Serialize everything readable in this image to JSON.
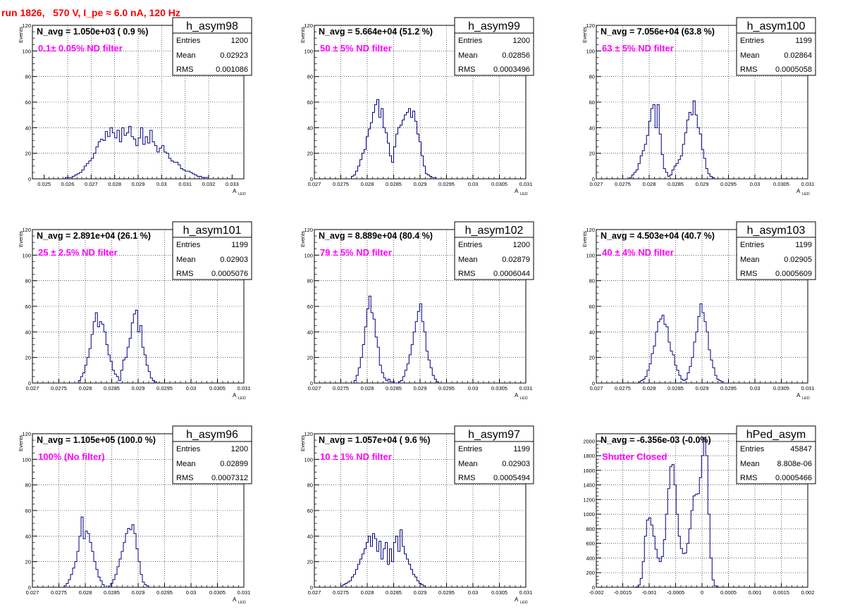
{
  "run_title": "run 1826,   570 V, I_pe ≈ 6.0 nA, 120 Hz",
  "colors": {
    "histogram_line": "#000080",
    "filter_label": "#ff00ff",
    "run_title": "#ff0000"
  },
  "chart_data": [
    {
      "type": "histogram",
      "name": "h_asym98",
      "title": "N_avg = 1.050e+03 ( 0.9 %)",
      "filter": "0.1± 0.05% ND filter",
      "stats": {
        "entries": "1200",
        "mean": "0.02923",
        "rms": "0.001086"
      },
      "stat_labels": {
        "entries": "Entries",
        "mean": "Mean",
        "rms": "RMS"
      },
      "ylabel": "Events",
      "xlabel": "A",
      "xlabel_sub": "LED",
      "xlim": [
        0.0245,
        0.0335
      ],
      "ylim": [
        0,
        120
      ],
      "xticks": [
        "0.025",
        "0.026",
        "0.027",
        "0.028",
        "0.029",
        "0.03",
        "0.031",
        "0.032",
        "0.033"
      ],
      "xtick_values": [
        0.025,
        0.026,
        0.027,
        0.028,
        0.029,
        0.03,
        0.031,
        0.032,
        0.033
      ],
      "yticks": [
        "0",
        "20",
        "40",
        "60",
        "80",
        "100",
        "120"
      ],
      "ytick_values": [
        0,
        20,
        40,
        60,
        80,
        100,
        120
      ],
      "bin_start": 0.0259,
      "bin_width": 0.0001,
      "counts": [
        1,
        1,
        1,
        2,
        3,
        4,
        5,
        7,
        10,
        12,
        14,
        16,
        20,
        25,
        29,
        31,
        30,
        37,
        33,
        40,
        36,
        32,
        38,
        29,
        40,
        34,
        36,
        41,
        33,
        31,
        26,
        32,
        40,
        27,
        33,
        28,
        38,
        29,
        26,
        21,
        24,
        26,
        21,
        20,
        16,
        14,
        13,
        13,
        11,
        8,
        7,
        6,
        6,
        5,
        4,
        3,
        2,
        2,
        1,
        1,
        1
      ]
    },
    {
      "type": "histogram",
      "name": "h_asym99",
      "title": "N_avg = 5.664e+04 (51.2 %)",
      "filter": "50 ± 5% ND filter",
      "stats": {
        "entries": "1200",
        "mean": "0.02856",
        "rms": "0.0003496"
      },
      "stat_labels": {
        "entries": "Entries",
        "mean": "Mean",
        "rms": "RMS"
      },
      "ylabel": "Events",
      "xlabel": "A",
      "xlabel_sub": "LED",
      "xlim": [
        0.027,
        0.031
      ],
      "ylim": [
        0,
        120
      ],
      "xticks": [
        "0.027",
        "0.0275",
        "0.028",
        "0.0285",
        "0.029",
        "0.0295",
        "0.03",
        "0.0305",
        "0.031"
      ],
      "xtick_values": [
        0.027,
        0.0275,
        0.028,
        0.0285,
        0.029,
        0.0295,
        0.03,
        0.0305,
        0.031
      ],
      "yticks": [
        "0",
        "20",
        "40",
        "60",
        "80",
        "100",
        "120"
      ],
      "ytick_values": [
        0,
        20,
        40,
        60,
        80,
        100,
        120
      ],
      "bin_start": 0.0277,
      "bin_width": 4e-05,
      "counts": [
        2,
        3,
        6,
        10,
        15,
        20,
        23,
        33,
        39,
        44,
        52,
        58,
        62,
        48,
        55,
        40,
        36,
        28,
        18,
        13,
        25,
        35,
        40,
        42,
        46,
        50,
        52,
        55,
        48,
        53,
        45,
        35,
        29,
        18,
        10,
        4,
        3,
        2,
        1,
        1
      ]
    },
    {
      "type": "histogram",
      "name": "h_asym100",
      "title": "N_avg = 7.056e+04 (63.8 %)",
      "filter": "63 ± 5% ND filter",
      "stats": {
        "entries": "1199",
        "mean": "0.02864",
        "rms": "0.0005058"
      },
      "stat_labels": {
        "entries": "Entries",
        "mean": "Mean",
        "rms": "RMS"
      },
      "ylabel": "Events",
      "xlabel": "A",
      "xlabel_sub": "LED",
      "xlim": [
        0.027,
        0.031
      ],
      "ylim": [
        0,
        120
      ],
      "xticks": [
        "0.027",
        "0.0275",
        "0.028",
        "0.0285",
        "0.029",
        "0.0295",
        "0.03",
        "0.0305",
        "0.031"
      ],
      "xtick_values": [
        0.027,
        0.0275,
        0.028,
        0.0285,
        0.029,
        0.0295,
        0.03,
        0.0305,
        0.031
      ],
      "yticks": [
        "0",
        "20",
        "40",
        "60",
        "80",
        "100",
        "120"
      ],
      "ytick_values": [
        0,
        20,
        40,
        60,
        80,
        100,
        120
      ],
      "bin_start": 0.02763,
      "bin_width": 4e-05,
      "counts": [
        1,
        3,
        5,
        7,
        12,
        18,
        22,
        27,
        34,
        45,
        55,
        58,
        40,
        58,
        35,
        19,
        8,
        5,
        2,
        3,
        7,
        10,
        12,
        15,
        18,
        27,
        36,
        46,
        52,
        50,
        61,
        50,
        40,
        35,
        23,
        16,
        8,
        4,
        2,
        1
      ]
    },
    {
      "type": "histogram",
      "name": "h_asym101",
      "title": "N_avg = 2.891e+04 (26.1 %)",
      "filter": "25 ± 2.5% ND filter",
      "stats": {
        "entries": "1199",
        "mean": "0.02903",
        "rms": "0.0005076"
      },
      "stat_labels": {
        "entries": "Entries",
        "mean": "Mean",
        "rms": "RMS"
      },
      "ylabel": "Events",
      "xlabel": "A",
      "xlabel_sub": "LED",
      "xlim": [
        0.027,
        0.031
      ],
      "ylim": [
        0,
        120
      ],
      "xticks": [
        "0.027",
        "0.0275",
        "0.028",
        "0.0285",
        "0.029",
        "0.0295",
        "0.03",
        "0.0305",
        "0.031"
      ],
      "xtick_values": [
        0.027,
        0.0275,
        0.028,
        0.0285,
        0.029,
        0.0295,
        0.03,
        0.0305,
        0.031
      ],
      "yticks": [
        "0",
        "20",
        "40",
        "60",
        "80",
        "100",
        "120"
      ],
      "ytick_values": [
        0,
        20,
        40,
        60,
        80,
        100,
        120
      ],
      "bin_start": 0.02787,
      "bin_width": 4e-05,
      "counts": [
        2,
        5,
        8,
        14,
        20,
        27,
        38,
        48,
        55,
        44,
        48,
        46,
        40,
        30,
        22,
        17,
        10,
        7,
        5,
        2,
        10,
        18,
        20,
        28,
        35,
        47,
        54,
        57,
        40,
        45,
        28,
        22,
        14,
        9,
        4,
        2,
        1
      ]
    },
    {
      "type": "histogram",
      "name": "h_asym102",
      "title": "N_avg = 8.889e+04 (80.4 %)",
      "filter": "79 ± 5% ND filter",
      "stats": {
        "entries": "1200",
        "mean": "0.02879",
        "rms": "0.0006044"
      },
      "stat_labels": {
        "entries": "Entries",
        "mean": "Mean",
        "rms": "RMS"
      },
      "ylabel": "Events",
      "xlabel": "A",
      "xlabel_sub": "LED",
      "xlim": [
        0.027,
        0.031
      ],
      "ylim": [
        0,
        120
      ],
      "xticks": [
        "0.027",
        "0.0275",
        "0.028",
        "0.0285",
        "0.029",
        "0.0295",
        "0.03",
        "0.0305",
        "0.031"
      ],
      "xtick_values": [
        0.027,
        0.0275,
        0.028,
        0.0285,
        0.029,
        0.0295,
        0.03,
        0.0305,
        0.031
      ],
      "yticks": [
        "0",
        "20",
        "40",
        "60",
        "80",
        "100",
        "120"
      ],
      "ytick_values": [
        0,
        20,
        40,
        60,
        80,
        100,
        120
      ],
      "bin_start": 0.02775,
      "bin_width": 4e-05,
      "counts": [
        2,
        6,
        12,
        20,
        30,
        44,
        58,
        68,
        55,
        50,
        36,
        28,
        14,
        8,
        4,
        2,
        3,
        1,
        1,
        0,
        0,
        1,
        2,
        5,
        10,
        15,
        22,
        30,
        40,
        48,
        56,
        62,
        48,
        40,
        25,
        18,
        12,
        6,
        3,
        1
      ]
    },
    {
      "type": "histogram",
      "name": "h_asym103",
      "title": "N_avg = 4.503e+04 (40.7 %)",
      "filter": "40 ± 4% ND filter",
      "stats": {
        "entries": "1199",
        "mean": "0.02905",
        "rms": "0.0005609"
      },
      "stat_labels": {
        "entries": "Entries",
        "mean": "Mean",
        "rms": "RMS"
      },
      "ylabel": "Events",
      "xlabel": "A",
      "xlabel_sub": "LED",
      "xlim": [
        0.027,
        0.031
      ],
      "ylim": [
        0,
        120
      ],
      "xticks": [
        "0.027",
        "0.0275",
        "0.028",
        "0.0285",
        "0.029",
        "0.0295",
        "0.03",
        "0.0305",
        "0.031"
      ],
      "xtick_values": [
        0.027,
        0.0275,
        0.028,
        0.0285,
        0.029,
        0.0295,
        0.03,
        0.0305,
        0.031
      ],
      "yticks": [
        "0",
        "20",
        "40",
        "60",
        "80",
        "100",
        "120"
      ],
      "ytick_values": [
        0,
        20,
        40,
        60,
        80,
        100,
        120
      ],
      "bin_start": 0.0278,
      "bin_width": 4e-05,
      "counts": [
        1,
        2,
        3,
        5,
        10,
        15,
        23,
        29,
        40,
        48,
        50,
        53,
        46,
        44,
        32,
        25,
        22,
        14,
        10,
        6,
        3,
        2,
        3,
        8,
        13,
        20,
        32,
        40,
        52,
        62,
        55,
        48,
        40,
        26,
        18,
        12,
        6,
        3,
        2,
        1
      ]
    },
    {
      "type": "histogram",
      "name": "h_asym96",
      "title": "N_avg = 1.105e+05 (100.0 %)",
      "filter": "100% (No filter)",
      "stats": {
        "entries": "1200",
        "mean": "0.02899",
        "rms": "0.0007312"
      },
      "stat_labels": {
        "entries": "Entries",
        "mean": "Mean",
        "rms": "RMS"
      },
      "ylabel": "Events",
      "xlabel": "A",
      "xlabel_sub": "LED",
      "xlim": [
        0.027,
        0.031
      ],
      "ylim": [
        0,
        120
      ],
      "xticks": [
        "0.027",
        "0.0275",
        "0.028",
        "0.0285",
        "0.029",
        "0.0295",
        "0.03",
        "0.0305",
        "0.031"
      ],
      "xtick_values": [
        0.027,
        0.0275,
        0.028,
        0.0285,
        0.029,
        0.0295,
        0.03,
        0.0305,
        0.031
      ],
      "yticks": [
        "0",
        "20",
        "40",
        "60",
        "80",
        "100",
        "120"
      ],
      "ytick_values": [
        0,
        20,
        40,
        60,
        80,
        100,
        120
      ],
      "bin_start": 0.0276,
      "bin_width": 4e-05,
      "counts": [
        1,
        3,
        6,
        10,
        15,
        20,
        28,
        40,
        55,
        38,
        44,
        42,
        35,
        28,
        20,
        14,
        8,
        5,
        2,
        0,
        0,
        1,
        3,
        6,
        10,
        16,
        22,
        28,
        35,
        42,
        46,
        45,
        49,
        42,
        30,
        20,
        10,
        4,
        2,
        1
      ]
    },
    {
      "type": "histogram",
      "name": "h_asym97",
      "title": "N_avg = 1.057e+04 ( 9.6 %)",
      "filter": "10 ± 1% ND filter",
      "stats": {
        "entries": "1199",
        "mean": "0.02903",
        "rms": "0.0005494"
      },
      "stat_labels": {
        "entries": "Entries",
        "mean": "Mean",
        "rms": "RMS"
      },
      "ylabel": "Events",
      "xlabel": "A",
      "xlabel_sub": "LED",
      "xlim": [
        0.027,
        0.031
      ],
      "ylim": [
        0,
        120
      ],
      "xticks": [
        "0.027",
        "0.0275",
        "0.028",
        "0.0285",
        "0.029",
        "0.0295",
        "0.03",
        "0.0305",
        "0.031"
      ],
      "xtick_values": [
        0.027,
        0.0275,
        0.028,
        0.0285,
        0.029,
        0.0295,
        0.03,
        0.0305,
        0.031
      ],
      "yticks": [
        "0",
        "20",
        "40",
        "60",
        "80",
        "100",
        "120"
      ],
      "ytick_values": [
        0,
        20,
        40,
        60,
        80,
        100,
        120
      ],
      "bin_start": 0.0275,
      "bin_width": 4e-05,
      "counts": [
        1,
        2,
        3,
        4,
        5,
        8,
        10,
        14,
        18,
        22,
        26,
        30,
        35,
        40,
        32,
        42,
        38,
        28,
        36,
        22,
        30,
        35,
        18,
        30,
        20,
        35,
        40,
        28,
        45,
        32,
        26,
        22,
        18,
        14,
        10,
        8,
        5,
        3,
        2,
        1
      ]
    },
    {
      "type": "histogram",
      "name": "hPed_asym",
      "title": "N_avg = -6.356e-03 (-0.0%)",
      "filter": "Shutter Closed",
      "stats": {
        "entries": "45847",
        "mean": "8.808e-06",
        "rms": "0.0005466"
      },
      "stat_labels": {
        "entries": "Entries",
        "mean": "Mean",
        "rms": "RMS"
      },
      "ylabel": "",
      "xlabel": "",
      "xlabel_sub": "",
      "xlim": [
        -0.002,
        0.002
      ],
      "ylim": [
        0,
        2100
      ],
      "xticks": [
        "-0.002",
        "-0.0015",
        "-0.001",
        "-0.0005",
        "0",
        "0.0005",
        "0.001",
        "0.0015",
        "0.002"
      ],
      "xtick_values": [
        -0.002,
        -0.0015,
        -0.001,
        -0.0005,
        0,
        0.0005,
        0.001,
        0.0015,
        0.002
      ],
      "yticks": [
        "0",
        "200",
        "400",
        "600",
        "800",
        "1000",
        "1200",
        "1400",
        "1600",
        "1800",
        "2000"
      ],
      "ytick_values": [
        0,
        200,
        400,
        600,
        800,
        1000,
        1200,
        1400,
        1600,
        1800,
        2000
      ],
      "bin_start": -0.00125,
      "bin_width": 4e-05,
      "counts": [
        5,
        30,
        120,
        350,
        700,
        920,
        950,
        850,
        700,
        520,
        400,
        350,
        420,
        650,
        1000,
        1350,
        1650,
        1680,
        1400,
        1000,
        700,
        530,
        460,
        470,
        600,
        800,
        1050,
        1250,
        1270,
        1280,
        1500,
        1800,
        2050,
        1800,
        1000,
        400,
        100,
        20,
        5
      ]
    }
  ]
}
